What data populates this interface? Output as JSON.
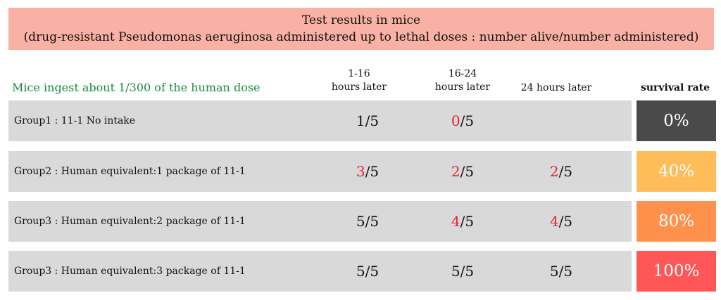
{
  "title": {
    "line1": "Test results in mice",
    "line2": "(drug-resistant Pseudomonas aeruginosa administered up to lethal doses : number alive/number administered)"
  },
  "note": "Mice ingest about 1/300 of the human dose",
  "columns": {
    "c1_line1": "1-16",
    "c1_line2": "hours later",
    "c2_line1": "16-24",
    "c2_line2": "hours later",
    "c3": "24 hours later",
    "c4": "survival rate"
  },
  "rows": [
    {
      "label": "Group1 : 11-1 No intake",
      "c1": {
        "alive": "1",
        "total": "/5",
        "alive_color": "#111111"
      },
      "c2": {
        "alive": "0",
        "total": "/5",
        "alive_color": "#e8212b"
      },
      "c3": {
        "alive": "",
        "total": "",
        "alive_color": "#111111"
      },
      "survival": "0%",
      "survival_color": "#4a4a4a"
    },
    {
      "label": "Group2 : Human equivalent:1 package of 11-1",
      "c1": {
        "alive": "3",
        "total": "/5",
        "alive_color": "#e8212b"
      },
      "c2": {
        "alive": "2",
        "total": "/5",
        "alive_color": "#e8212b"
      },
      "c3": {
        "alive": "2",
        "total": "/5",
        "alive_color": "#e8212b"
      },
      "survival": "40%",
      "survival_color": "#ffbd59"
    },
    {
      "label": "Group3 : Human equivalent:2 package of 11-1",
      "c1": {
        "alive": "5",
        "total": "/5",
        "alive_color": "#111111"
      },
      "c2": {
        "alive": "4",
        "total": "/5",
        "alive_color": "#e8212b"
      },
      "c3": {
        "alive": "4",
        "total": "/5",
        "alive_color": "#e8212b"
      },
      "survival": "80%",
      "survival_color": "#ff914d"
    },
    {
      "label": "Group3 : Human equivalent:3 package of 11-1",
      "c1": {
        "alive": "5",
        "total": "/5",
        "alive_color": "#111111"
      },
      "c2": {
        "alive": "5",
        "total": "/5",
        "alive_color": "#111111"
      },
      "c3": {
        "alive": "5",
        "total": "/5",
        "alive_color": "#111111"
      },
      "survival": "100%",
      "survival_color": "#ff5757"
    }
  ]
}
